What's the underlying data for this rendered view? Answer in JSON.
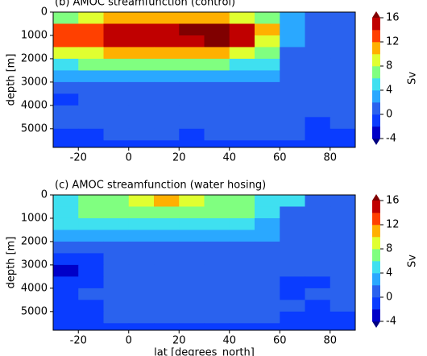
{
  "chart_data": [
    {
      "type": "contour",
      "title": "(b) AMOC streamfunction (control)",
      "ylabel": "depth [m]",
      "x": [
        -25,
        -15,
        -5,
        5,
        15,
        25,
        35,
        45,
        55,
        65,
        75,
        85
      ],
      "y": [
        250,
        750,
        1250,
        1750,
        2250,
        2750,
        3250,
        3750,
        4250,
        4750,
        5250,
        5750
      ],
      "z": [
        [
          6,
          8,
          10,
          10,
          11,
          11,
          10,
          9,
          7,
          2,
          1,
          1
        ],
        [
          12,
          13,
          14,
          15,
          15,
          16,
          16,
          15,
          10,
          2,
          1,
          1
        ],
        [
          12,
          13,
          14,
          14,
          15,
          15,
          16,
          15,
          9,
          2,
          1,
          1
        ],
        [
          8,
          9,
          10,
          10,
          10,
          10,
          10,
          9,
          7,
          1,
          1,
          1
        ],
        [
          5,
          6,
          6,
          6,
          6,
          6,
          6,
          5,
          4,
          1,
          1,
          1
        ],
        [
          2,
          3,
          3,
          3,
          3,
          3,
          3,
          3,
          2,
          1,
          1,
          1
        ],
        [
          1,
          1,
          1,
          1,
          1,
          1,
          1,
          1,
          1,
          1,
          1,
          1
        ],
        [
          -1,
          1,
          1,
          1,
          1,
          1,
          1,
          1,
          1,
          1,
          1,
          1
        ],
        [
          1,
          1,
          1,
          1,
          1,
          1,
          1,
          1,
          1,
          1,
          1,
          1
        ],
        [
          1,
          1,
          1,
          1,
          1,
          1,
          1,
          1,
          1,
          1,
          -1,
          1
        ],
        [
          -1,
          -1,
          1,
          1,
          1,
          -1,
          1,
          1,
          1,
          1,
          -1,
          -1
        ],
        [
          -1,
          -1,
          -1,
          -1,
          -1,
          -1,
          -1,
          -1,
          -1,
          -1,
          -1,
          -1
        ]
      ],
      "xlim": [
        -30,
        90
      ],
      "ylim": [
        5800,
        0
      ],
      "xticks": [
        -20,
        0,
        20,
        40,
        60,
        80
      ],
      "yticks": [
        0,
        1000,
        2000,
        3000,
        4000,
        5000
      ],
      "colorbar": {
        "label": "Sv",
        "levels": [
          -4,
          -2,
          0,
          2,
          4,
          6,
          8,
          10,
          12,
          14,
          16
        ],
        "colors": [
          "#00007f",
          "#0000c8",
          "#0a3cff",
          "#2a62ee",
          "#2aa8ff",
          "#3fe0f0",
          "#80ff80",
          "#e0ff30",
          "#ffb000",
          "#ff4000",
          "#c00000",
          "#800000"
        ],
        "ticks": [
          -4,
          0,
          4,
          8,
          12,
          16
        ]
      }
    },
    {
      "type": "contour",
      "title": "(c) AMOC streamfunction (water hosing)",
      "ylabel": "depth [m]",
      "xlabel": "lat [degrees_north]",
      "x": [
        -25,
        -15,
        -5,
        5,
        15,
        25,
        35,
        45,
        55,
        65,
        75,
        85
      ],
      "y": [
        250,
        750,
        1250,
        1750,
        2250,
        2750,
        3250,
        3750,
        4250,
        4750,
        5250,
        5750
      ],
      "z": [
        [
          5,
          6,
          7,
          9,
          11,
          9,
          7,
          6,
          5,
          4,
          1,
          1
        ],
        [
          5,
          6,
          6,
          7,
          7,
          7,
          6,
          6,
          5,
          1,
          1,
          1
        ],
        [
          4,
          4,
          5,
          5,
          5,
          4,
          4,
          4,
          3,
          1,
          1,
          1
        ],
        [
          3,
          3,
          3,
          3,
          3,
          3,
          2,
          2,
          2,
          1,
          1,
          1
        ],
        [
          1,
          1,
          1,
          1,
          1,
          1,
          1,
          1,
          1,
          1,
          1,
          1
        ],
        [
          -1,
          -1,
          1,
          1,
          1,
          1,
          1,
          1,
          1,
          1,
          1,
          1
        ],
        [
          -3,
          -1,
          1,
          1,
          1,
          1,
          1,
          1,
          1,
          1,
          1,
          1
        ],
        [
          -1,
          -1,
          1,
          1,
          1,
          1,
          1,
          1,
          1,
          -1,
          -1,
          1
        ],
        [
          -1,
          1,
          1,
          1,
          1,
          1,
          1,
          1,
          1,
          -1,
          1,
          1
        ],
        [
          -1,
          -1,
          1,
          1,
          1,
          1,
          1,
          1,
          1,
          1,
          -1,
          1
        ],
        [
          -1,
          -1,
          1,
          1,
          1,
          1,
          1,
          1,
          1,
          -1,
          -1,
          -1
        ],
        [
          -1,
          -1,
          -1,
          -1,
          -1,
          -1,
          -1,
          -1,
          -1,
          -1,
          -1,
          -1
        ]
      ],
      "xlim": [
        -30,
        90
      ],
      "ylim": [
        5800,
        0
      ],
      "xticks": [
        -20,
        0,
        20,
        40,
        60,
        80
      ],
      "yticks": [
        0,
        1000,
        2000,
        3000,
        4000,
        5000
      ],
      "colorbar": {
        "label": "Sv",
        "levels": [
          -4,
          -2,
          0,
          2,
          4,
          6,
          8,
          10,
          12,
          14,
          16
        ],
        "colors": [
          "#00007f",
          "#0000c8",
          "#0a3cff",
          "#2a62ee",
          "#2aa8ff",
          "#3fe0f0",
          "#80ff80",
          "#e0ff30",
          "#ffb000",
          "#ff4000",
          "#c00000",
          "#800000"
        ],
        "ticks": [
          -4,
          0,
          4,
          8,
          12,
          16
        ]
      }
    }
  ]
}
